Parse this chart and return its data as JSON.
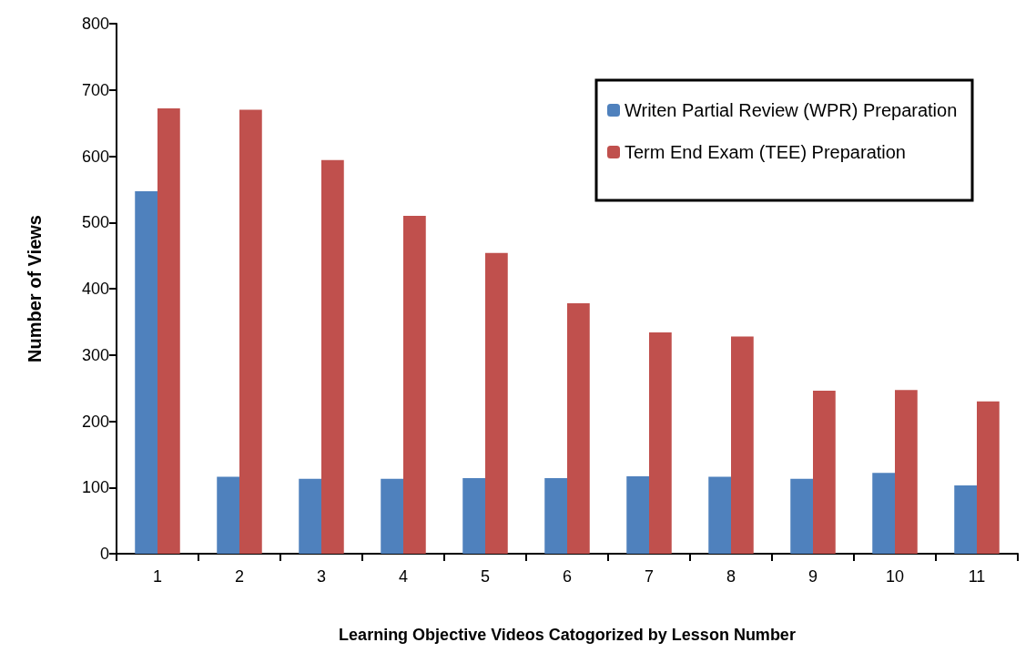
{
  "chart_data": {
    "type": "bar",
    "xlabel": "Learning Objective Videos Catogorized by Lesson Number",
    "ylabel": "Number of Views",
    "categories": [
      "1",
      "2",
      "3",
      "4",
      "5",
      "6",
      "7",
      "8",
      "9",
      "10",
      "11"
    ],
    "series": [
      {
        "name": "Writen Partial Review (WPR) Preparation",
        "color": "#4f81bd",
        "values": [
          547,
          116,
          113,
          113,
          114,
          114,
          117,
          116,
          113,
          122,
          103
        ]
      },
      {
        "name": "Term End Exam (TEE) Preparation",
        "color": "#c0504d",
        "values": [
          672,
          670,
          594,
          510,
          454,
          378,
          334,
          328,
          246,
          247,
          230
        ]
      }
    ],
    "ylim": [
      0,
      800
    ],
    "yticks": [
      0,
      100,
      200,
      300,
      400,
      500,
      600,
      700,
      800
    ],
    "grid": false,
    "legend": "top right"
  }
}
